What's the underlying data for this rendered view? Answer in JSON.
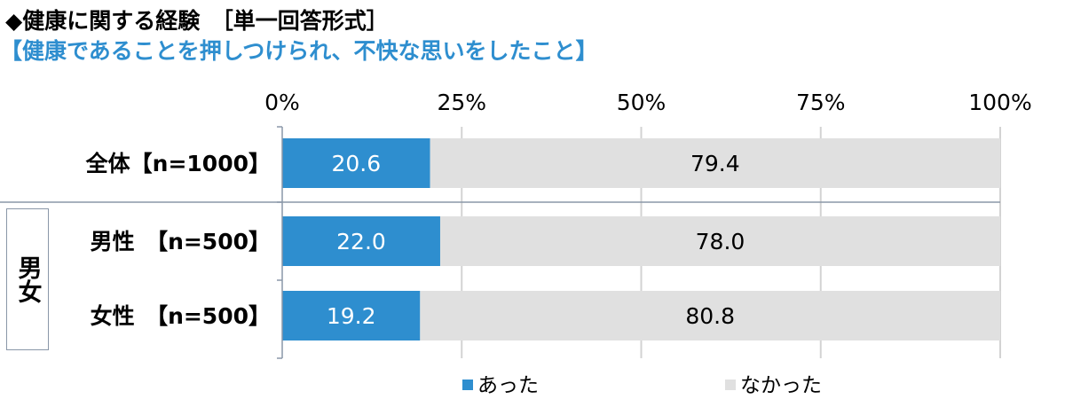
{
  "header": {
    "title": "◆健康に関する経験　［単一回答形式］",
    "subtitle": "【健康であることを押しつけられ、不快な思いをしたこと】"
  },
  "group_label": "男女",
  "chart_data": {
    "type": "bar",
    "orientation": "horizontal",
    "stacked": true,
    "categories": [
      "全体【n=1000】",
      "男性　【n=500】",
      "女性　【n=500】"
    ],
    "series": [
      {
        "name": "あった",
        "values": [
          20.6,
          22.0,
          19.2
        ],
        "labels": [
          "20.6",
          "22.0",
          "19.2"
        ],
        "color": "#2e8ecf",
        "label_color": "#ffffff"
      },
      {
        "name": "なかった",
        "values": [
          79.4,
          78.0,
          80.8
        ],
        "labels": [
          "79.4",
          "78.0",
          "80.8"
        ],
        "color": "#e0e0e0",
        "label_color": "#000000"
      }
    ],
    "x_ticks": [
      "0%",
      "25%",
      "50%",
      "75%",
      "100%"
    ],
    "xlim": [
      0,
      100
    ],
    "grid": true,
    "legend_position": "bottom"
  }
}
